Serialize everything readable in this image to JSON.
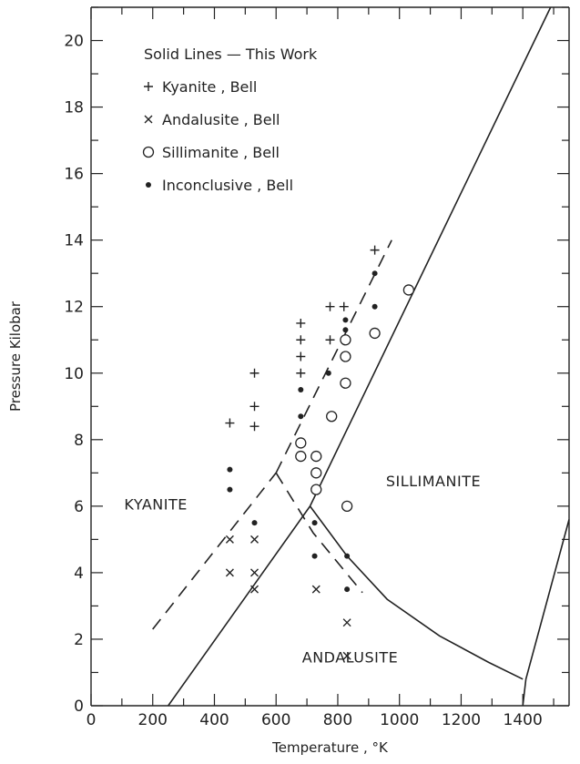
{
  "chart_data": {
    "type": "scatter",
    "xlabel": "Temperature , °K",
    "ylabel": "Pressure Kilobar",
    "xlim": [
      0,
      1550
    ],
    "ylim": [
      0,
      21
    ],
    "x_ticks": [
      0,
      200,
      400,
      600,
      800,
      1000,
      1200,
      1400
    ],
    "y_ticks": [
      0,
      2,
      4,
      6,
      8,
      10,
      12,
      14,
      16,
      18,
      20
    ],
    "grid": false,
    "legend_position": "top-left",
    "legend": [
      {
        "marker": "solid-line",
        "label": "Solid Lines — This Work"
      },
      {
        "marker": "plus",
        "label": "Kyanite , Bell"
      },
      {
        "marker": "x",
        "label": "Andalusite , Bell"
      },
      {
        "marker": "circle",
        "label": "Sillimanite , Bell"
      },
      {
        "marker": "dot",
        "label": "Inconclusive , Bell"
      }
    ],
    "regions": [
      {
        "label": "KYANITE",
        "x": 210,
        "y": 5.9
      },
      {
        "label": "SILLIMANITE",
        "x": 1110,
        "y": 6.6
      },
      {
        "label": "ANDALUSITE",
        "x": 840,
        "y": 1.3
      }
    ],
    "solid_lines": [
      {
        "name": "kyanite-sillimanite",
        "points": [
          [
            710,
            6.0
          ],
          [
            1490,
            21
          ]
        ]
      },
      {
        "name": "kyanite-andalusite",
        "points": [
          [
            250,
            0
          ],
          [
            710,
            6.0
          ]
        ]
      },
      {
        "name": "andalusite-sillimanite",
        "points": [
          [
            710,
            6.0
          ],
          [
            830,
            4.5
          ],
          [
            960,
            3.2
          ],
          [
            1130,
            2.1
          ],
          [
            1290,
            1.3
          ],
          [
            1400,
            0.8
          ]
        ]
      },
      {
        "name": "melting",
        "points": [
          [
            1400,
            0
          ],
          [
            1410,
            0.8
          ],
          [
            1550,
            5.6
          ]
        ]
      }
    ],
    "dashed_lines": [
      {
        "name": "bell-kyanite-sillimanite",
        "points": [
          [
            600,
            7.0
          ],
          [
            975,
            14.0
          ]
        ]
      },
      {
        "name": "bell-kyanite-andalusite",
        "points": [
          [
            200,
            2.3
          ],
          [
            600,
            7.0
          ]
        ]
      },
      {
        "name": "bell-andalusite-sillimanite",
        "points": [
          [
            600,
            7.0
          ],
          [
            720,
            5.2
          ],
          [
            880,
            3.4
          ]
        ]
      }
    ],
    "series": [
      {
        "name": "Kyanite , Bell",
        "marker": "plus",
        "points": [
          [
            450,
            8.5
          ],
          [
            530,
            10.0
          ],
          [
            530,
            9.0
          ],
          [
            530,
            8.4
          ],
          [
            680,
            11.5
          ],
          [
            680,
            11.0
          ],
          [
            680,
            10.5
          ],
          [
            680,
            10.0
          ],
          [
            775,
            12.0
          ],
          [
            775,
            11.0
          ],
          [
            820,
            12.0
          ],
          [
            920,
            13.7
          ]
        ]
      },
      {
        "name": "Andalusite , Bell",
        "marker": "x",
        "points": [
          [
            450,
            5.0
          ],
          [
            450,
            4.0
          ],
          [
            530,
            5.0
          ],
          [
            530,
            4.0
          ],
          [
            530,
            3.5
          ],
          [
            730,
            3.5
          ],
          [
            830,
            2.5
          ],
          [
            830,
            1.5
          ]
        ]
      },
      {
        "name": "Sillimanite , Bell",
        "marker": "circle",
        "points": [
          [
            680,
            7.9
          ],
          [
            680,
            7.5
          ],
          [
            730,
            7.5
          ],
          [
            730,
            7.0
          ],
          [
            730,
            6.5
          ],
          [
            780,
            8.7
          ],
          [
            825,
            11.0
          ],
          [
            825,
            10.5
          ],
          [
            825,
            9.7
          ],
          [
            830,
            6.0
          ],
          [
            920,
            11.2
          ],
          [
            1030,
            12.5
          ]
        ]
      },
      {
        "name": "Inconclusive , Bell",
        "marker": "dot",
        "points": [
          [
            450,
            7.1
          ],
          [
            450,
            6.5
          ],
          [
            530,
            5.5
          ],
          [
            680,
            9.5
          ],
          [
            680,
            8.7
          ],
          [
            770,
            10.0
          ],
          [
            725,
            5.5
          ],
          [
            725,
            4.5
          ],
          [
            825,
            11.6
          ],
          [
            825,
            11.3
          ],
          [
            830,
            4.5
          ],
          [
            830,
            3.5
          ],
          [
            920,
            13.0
          ],
          [
            920,
            12.0
          ]
        ]
      }
    ]
  }
}
